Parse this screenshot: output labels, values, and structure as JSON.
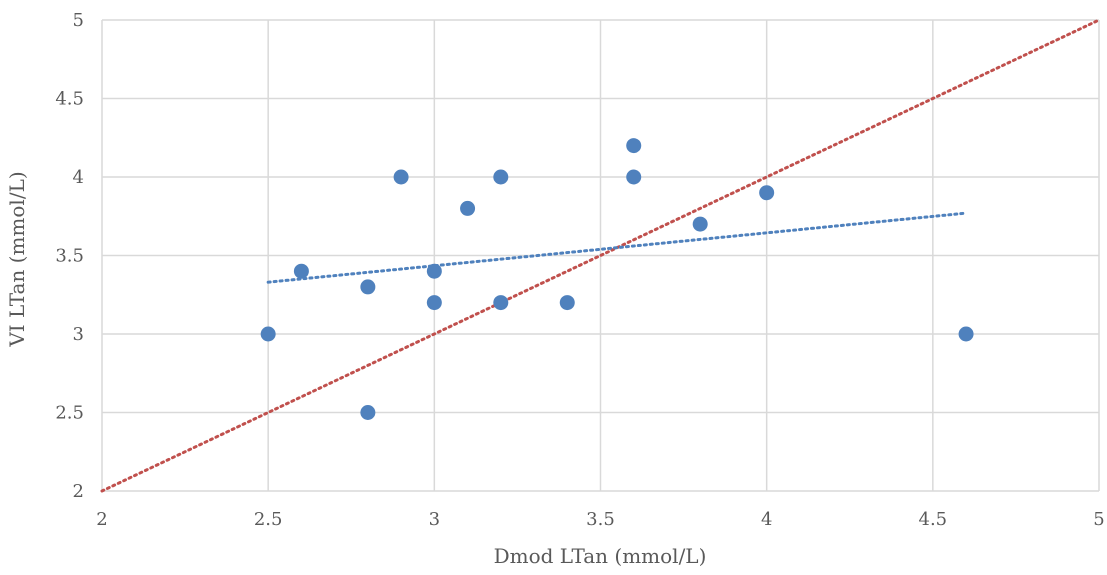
{
  "chart_data": {
    "type": "scatter",
    "title": "",
    "xlabel": "Dmod LTan (mmol/L)",
    "ylabel": "VI LTan (mmol/L)",
    "xlim": [
      2,
      5
    ],
    "ylim": [
      2,
      5
    ],
    "x_ticks": [
      2,
      2.5,
      3,
      3.5,
      4,
      4.5,
      5
    ],
    "y_ticks": [
      2,
      2.5,
      3,
      3.5,
      4,
      4.5,
      5
    ],
    "x_tick_labels": [
      "2",
      "2.5",
      "3",
      "3.5",
      "4",
      "4.5",
      "5"
    ],
    "y_tick_labels": [
      "2",
      "2.5",
      "3",
      "3.5",
      "4",
      "4.5",
      "5"
    ],
    "grid": true,
    "series": [
      {
        "color": "#4f81bd",
        "points": [
          {
            "x": 2.5,
            "y": 3.0
          },
          {
            "x": 2.6,
            "y": 3.4
          },
          {
            "x": 2.8,
            "y": 3.3
          },
          {
            "x": 2.8,
            "y": 2.5
          },
          {
            "x": 2.9,
            "y": 4.0
          },
          {
            "x": 3.0,
            "y": 3.4
          },
          {
            "x": 3.0,
            "y": 3.2
          },
          {
            "x": 3.1,
            "y": 3.8
          },
          {
            "x": 3.2,
            "y": 4.0
          },
          {
            "x": 3.2,
            "y": 3.2
          },
          {
            "x": 3.4,
            "y": 3.2
          },
          {
            "x": 3.6,
            "y": 4.2
          },
          {
            "x": 3.6,
            "y": 4.0
          },
          {
            "x": 3.8,
            "y": 3.7
          },
          {
            "x": 4.0,
            "y": 3.9
          },
          {
            "x": 4.6,
            "y": 3.0
          }
        ]
      }
    ],
    "trendline": {
      "color": "#4f81bd",
      "style": "dotted",
      "x": [
        2.5,
        4.6
      ],
      "y": [
        3.33,
        3.77
      ]
    },
    "identity_line": {
      "color": "#c0504d",
      "style": "dotted",
      "x": [
        2,
        5
      ],
      "y": [
        2,
        5
      ]
    }
  }
}
